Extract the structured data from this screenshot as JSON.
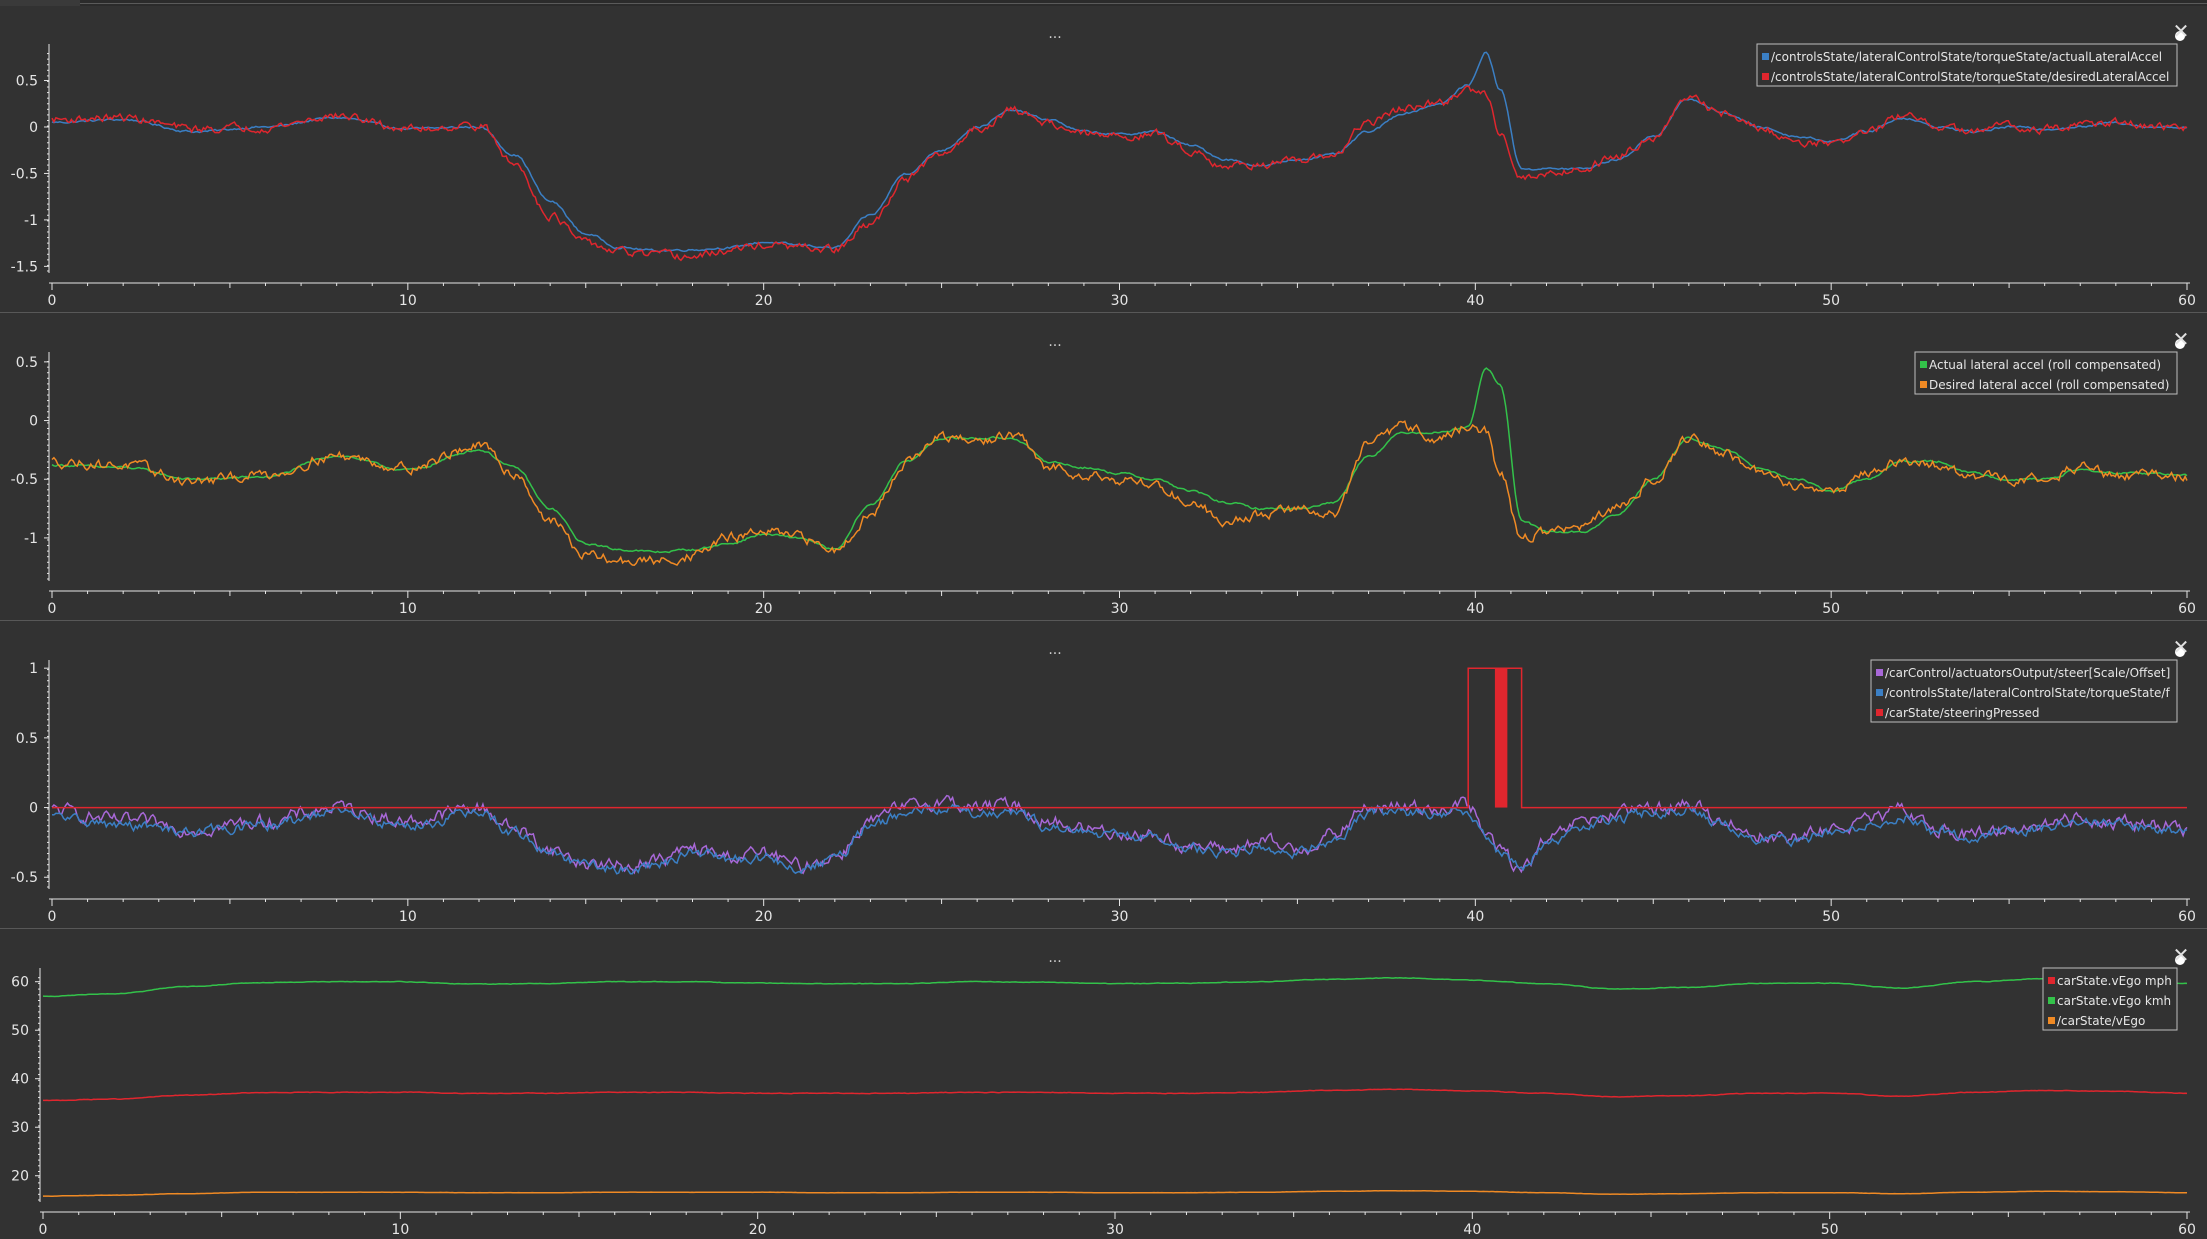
{
  "panel_menu_label": "...",
  "close_label": "✕",
  "colors": {
    "background": "#323232",
    "axis": "#e6e6e6",
    "blue": "#3b7fc4",
    "red": "#e0262e",
    "green": "#33c24a",
    "orange": "#f08a24",
    "purple": "#a868d8"
  },
  "chart_data": [
    {
      "type": "line",
      "xlim": [
        0,
        60
      ],
      "ylim": [
        -1.55,
        0.85
      ],
      "xticks": [
        0,
        10,
        20,
        30,
        40,
        50,
        60
      ],
      "yticks": [
        0.5,
        0,
        -0.5,
        -1,
        -1.5
      ],
      "ytick_labels": [
        "0.5",
        "0",
        "-0.5",
        "-1",
        "-1.5"
      ],
      "legend_position": "top-right",
      "x": [
        0,
        2,
        4,
        6,
        8,
        10,
        12,
        13,
        14,
        15,
        16,
        17,
        18,
        19,
        20,
        21,
        22,
        23,
        24,
        25,
        26,
        27,
        28,
        29,
        30,
        31,
        32,
        33,
        34,
        35,
        36,
        37,
        38,
        39,
        39.8,
        40.3,
        40.7,
        41.3,
        42,
        43,
        44,
        45,
        46,
        47,
        48,
        49,
        50,
        51,
        52,
        53,
        54,
        55,
        56,
        57,
        58,
        59,
        60
      ],
      "series": [
        {
          "name": "/controlsState/lateralControlState/torqueState/actualLateralAccel",
          "color": "#3b7fc4",
          "noise": 0.01,
          "values": [
            0.05,
            0.08,
            -0.05,
            0.0,
            0.1,
            -0.02,
            0.0,
            -0.3,
            -0.8,
            -1.15,
            -1.3,
            -1.33,
            -1.32,
            -1.3,
            -1.24,
            -1.27,
            -1.3,
            -0.95,
            -0.5,
            -0.25,
            0.0,
            0.18,
            0.08,
            -0.05,
            -0.08,
            -0.05,
            -0.2,
            -0.35,
            -0.42,
            -0.35,
            -0.3,
            -0.05,
            0.15,
            0.25,
            0.45,
            0.8,
            0.4,
            -0.45,
            -0.45,
            -0.45,
            -0.35,
            -0.1,
            0.3,
            0.15,
            0.0,
            -0.1,
            -0.15,
            -0.05,
            0.1,
            0.0,
            -0.05,
            0.0,
            -0.02,
            0.0,
            0.05,
            0.0,
            0.0
          ]
        },
        {
          "name": "/controlsState/lateralControlState/torqueState/desiredLateralAccel",
          "color": "#e0262e",
          "noise": 0.035,
          "values": [
            0.08,
            0.1,
            -0.02,
            0.0,
            0.12,
            -0.02,
            0.02,
            -0.4,
            -0.95,
            -1.25,
            -1.35,
            -1.38,
            -1.4,
            -1.33,
            -1.27,
            -1.3,
            -1.32,
            -1.05,
            -0.55,
            -0.3,
            -0.02,
            0.18,
            0.05,
            -0.08,
            -0.1,
            -0.08,
            -0.25,
            -0.42,
            -0.4,
            -0.38,
            -0.3,
            0.05,
            0.2,
            0.25,
            0.4,
            0.35,
            -0.05,
            -0.55,
            -0.5,
            -0.45,
            -0.3,
            -0.1,
            0.3,
            0.15,
            -0.02,
            -0.15,
            -0.18,
            -0.05,
            0.12,
            0.0,
            -0.05,
            0.02,
            -0.02,
            0.02,
            0.05,
            0.0,
            -0.02
          ]
        }
      ]
    },
    {
      "type": "line",
      "xlim": [
        0,
        60
      ],
      "ylim": [
        -1.35,
        0.55
      ],
      "xticks": [
        0,
        10,
        20,
        30,
        40,
        50,
        60
      ],
      "yticks": [
        0.5,
        0,
        -0.5,
        -1
      ],
      "ytick_labels": [
        "0.5",
        "0",
        "-0.5",
        "-1"
      ],
      "legend_position": "top-right",
      "x": [
        0,
        2,
        4,
        6,
        8,
        10,
        12,
        13,
        14,
        15,
        16,
        17,
        18,
        19,
        20,
        21,
        22,
        23,
        24,
        25,
        26,
        27,
        28,
        29,
        30,
        31,
        32,
        33,
        34,
        35,
        36,
        37,
        38,
        39,
        39.8,
        40.3,
        40.7,
        41.3,
        42,
        43,
        44,
        45,
        46,
        47,
        48,
        49,
        50,
        51,
        52,
        53,
        54,
        55,
        56,
        57,
        58,
        59,
        60
      ],
      "series": [
        {
          "name": "Actual lateral accel (roll compensated)",
          "color": "#33c24a",
          "noise": 0.008,
          "values": [
            -0.38,
            -0.4,
            -0.5,
            -0.48,
            -0.3,
            -0.42,
            -0.25,
            -0.4,
            -0.75,
            -1.05,
            -1.1,
            -1.12,
            -1.1,
            -1.05,
            -0.97,
            -1.0,
            -1.1,
            -0.72,
            -0.35,
            -0.15,
            -0.15,
            -0.15,
            -0.35,
            -0.4,
            -0.45,
            -0.5,
            -0.6,
            -0.7,
            -0.75,
            -0.75,
            -0.7,
            -0.3,
            -0.1,
            -0.1,
            -0.05,
            0.45,
            0.3,
            -0.85,
            -0.95,
            -0.95,
            -0.8,
            -0.5,
            -0.15,
            -0.25,
            -0.4,
            -0.5,
            -0.6,
            -0.5,
            -0.35,
            -0.35,
            -0.45,
            -0.5,
            -0.5,
            -0.42,
            -0.45,
            -0.45,
            -0.47
          ]
        },
        {
          "name": "Desired lateral accel (roll compensated)",
          "color": "#f08a24",
          "noise": 0.035,
          "values": [
            -0.35,
            -0.38,
            -0.52,
            -0.46,
            -0.3,
            -0.4,
            -0.22,
            -0.45,
            -0.85,
            -1.15,
            -1.2,
            -1.2,
            -1.15,
            -1.0,
            -0.95,
            -1.0,
            -1.1,
            -0.8,
            -0.35,
            -0.15,
            -0.18,
            -0.12,
            -0.4,
            -0.45,
            -0.5,
            -0.55,
            -0.7,
            -0.85,
            -0.8,
            -0.75,
            -0.8,
            -0.2,
            -0.05,
            -0.15,
            -0.05,
            -0.1,
            -0.45,
            -1.0,
            -0.95,
            -0.9,
            -0.75,
            -0.5,
            -0.15,
            -0.28,
            -0.45,
            -0.55,
            -0.6,
            -0.45,
            -0.35,
            -0.38,
            -0.48,
            -0.5,
            -0.48,
            -0.4,
            -0.48,
            -0.45,
            -0.48
          ]
        }
      ]
    },
    {
      "type": "line",
      "xlim": [
        0,
        60
      ],
      "ylim": [
        -0.57,
        1.03
      ],
      "xticks": [
        0,
        10,
        20,
        30,
        40,
        50,
        60
      ],
      "yticks": [
        1,
        0.5,
        0,
        -0.5
      ],
      "ytick_labels": [
        "1",
        "0.5",
        "0",
        "-0.5"
      ],
      "legend_position": "top-right",
      "x": [
        0,
        2,
        4,
        6,
        8,
        10,
        12,
        13,
        14,
        15,
        16,
        17,
        18,
        19,
        20,
        21,
        22,
        23,
        24,
        25,
        26,
        27,
        28,
        29,
        30,
        31,
        32,
        33,
        34,
        35,
        36,
        37,
        38,
        39,
        39.8,
        40.3,
        40.7,
        41.3,
        42,
        43,
        44,
        45,
        46,
        47,
        48,
        49,
        50,
        51,
        52,
        53,
        54,
        55,
        56,
        57,
        58,
        59,
        60
      ],
      "series": [
        {
          "name": "/carControl/actuatorsOutput/steer[Scale/Offset]",
          "color": "#a868d8",
          "noise": 0.04,
          "values": [
            -0.02,
            -0.1,
            -0.15,
            -0.1,
            0.0,
            -0.1,
            0.0,
            -0.15,
            -0.3,
            -0.4,
            -0.42,
            -0.38,
            -0.3,
            -0.35,
            -0.33,
            -0.42,
            -0.35,
            -0.1,
            0.0,
            0.05,
            0.0,
            0.02,
            -0.1,
            -0.15,
            -0.18,
            -0.2,
            -0.28,
            -0.3,
            -0.25,
            -0.3,
            -0.2,
            0.0,
            0.0,
            0.0,
            0.02,
            -0.2,
            -0.3,
            -0.45,
            -0.25,
            -0.1,
            -0.05,
            0.0,
            0.02,
            -0.1,
            -0.2,
            -0.22,
            -0.15,
            -0.1,
            -0.02,
            -0.15,
            -0.2,
            -0.15,
            -0.12,
            -0.08,
            -0.1,
            -0.12,
            -0.15
          ]
        },
        {
          "name": "/controlsState/lateralControlState/torqueState/f",
          "color": "#3b7fc4",
          "noise": 0.03,
          "values": [
            -0.07,
            -0.13,
            -0.17,
            -0.13,
            -0.04,
            -0.13,
            -0.04,
            -0.18,
            -0.32,
            -0.42,
            -0.44,
            -0.41,
            -0.33,
            -0.37,
            -0.36,
            -0.44,
            -0.37,
            -0.13,
            -0.05,
            0.0,
            -0.04,
            -0.02,
            -0.13,
            -0.18,
            -0.2,
            -0.22,
            -0.3,
            -0.32,
            -0.28,
            -0.32,
            -0.23,
            -0.04,
            -0.04,
            -0.04,
            -0.02,
            -0.2,
            -0.32,
            -0.42,
            -0.28,
            -0.13,
            -0.08,
            -0.03,
            -0.02,
            -0.13,
            -0.22,
            -0.24,
            -0.18,
            -0.13,
            -0.06,
            -0.17,
            -0.22,
            -0.17,
            -0.15,
            -0.11,
            -0.13,
            -0.14,
            -0.17
          ]
        },
        {
          "name": "/carState/steeringPressed",
          "color": "#e0262e",
          "noise": 0,
          "values": [
            0,
            0,
            0,
            0,
            0,
            0,
            0,
            0,
            0,
            0,
            0,
            0,
            0,
            0,
            0,
            0,
            0,
            0,
            0,
            0,
            0,
            0,
            0,
            0,
            0,
            0,
            0,
            0,
            0,
            0,
            0,
            0,
            0,
            0,
            1,
            1,
            1,
            0,
            0,
            0,
            0,
            0,
            0,
            0,
            0,
            0,
            0,
            0,
            0,
            0,
            0,
            0,
            0,
            0,
            0,
            0,
            0
          ]
        }
      ]
    },
    {
      "type": "line",
      "xlim": [
        0,
        60
      ],
      "ylim": [
        15,
        62
      ],
      "xticks": [
        0,
        10,
        20,
        30,
        40,
        50,
        60
      ],
      "yticks": [
        60,
        50,
        40,
        30,
        20
      ],
      "ytick_labels": [
        "60",
        "50",
        "40",
        "30",
        "20"
      ],
      "legend_position": "top-right",
      "x": [
        0,
        2,
        4,
        6,
        8,
        10,
        12,
        14,
        16,
        18,
        20,
        22,
        24,
        26,
        28,
        30,
        32,
        34,
        36,
        38,
        40,
        42,
        44,
        46,
        48,
        50,
        52,
        54,
        56,
        58,
        60
      ],
      "series": [
        {
          "name": "carState.vEgo mph",
          "color": "#e0262e",
          "noise": 0.05,
          "values": [
            35.5,
            35.8,
            36.6,
            37.1,
            37.2,
            37.2,
            37.0,
            37.0,
            37.2,
            37.2,
            37.0,
            37.0,
            37.0,
            37.2,
            37.2,
            37.0,
            37.0,
            37.2,
            37.6,
            37.8,
            37.5,
            37.0,
            36.3,
            36.5,
            37.0,
            37.0,
            36.4,
            37.2,
            37.6,
            37.4,
            37.0
          ]
        },
        {
          "name": "carState.vEgo kmh",
          "color": "#33c24a",
          "noise": 0.05,
          "values": [
            57.0,
            57.5,
            59.0,
            59.8,
            60.0,
            60.0,
            59.5,
            59.6,
            60.0,
            60.0,
            59.7,
            59.6,
            59.6,
            60.0,
            59.9,
            59.6,
            59.7,
            60.0,
            60.5,
            60.8,
            60.3,
            59.6,
            58.5,
            58.8,
            59.7,
            59.7,
            58.7,
            60.0,
            60.6,
            60.2,
            59.7
          ]
        },
        {
          "name": "/carState/vEgo",
          "color": "#f08a24",
          "noise": 0.02,
          "values": [
            15.8,
            16.0,
            16.3,
            16.6,
            16.6,
            16.6,
            16.5,
            16.5,
            16.6,
            16.6,
            16.6,
            16.5,
            16.5,
            16.6,
            16.6,
            16.5,
            16.5,
            16.6,
            16.8,
            16.9,
            16.8,
            16.5,
            16.2,
            16.3,
            16.5,
            16.5,
            16.3,
            16.6,
            16.8,
            16.7,
            16.5
          ]
        }
      ]
    }
  ]
}
